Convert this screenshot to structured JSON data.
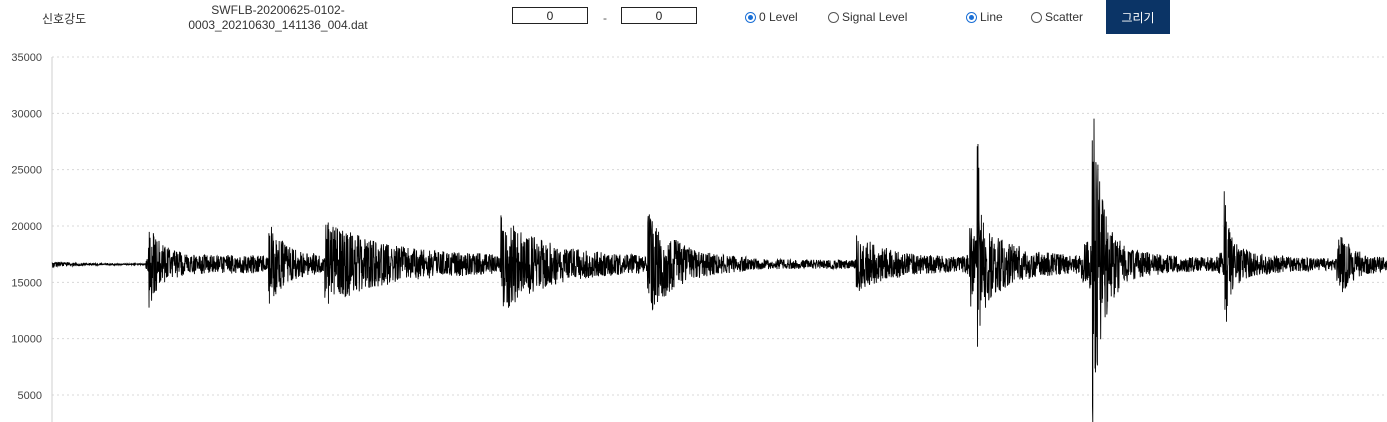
{
  "toolbar": {
    "title": "신호강도",
    "filename_line1": "SWFLB-20200625-0102-",
    "filename_line2": "0003_20210630_141136_004.dat",
    "range_start": "0",
    "range_sep": "-",
    "range_end": "0",
    "level_options": [
      {
        "label": "0 Level",
        "selected": true
      },
      {
        "label": "Signal Level",
        "selected": false
      }
    ],
    "style_options": [
      {
        "label": "Line",
        "selected": true
      },
      {
        "label": "Scatter",
        "selected": false
      }
    ],
    "draw_label": "그리기"
  },
  "colors": {
    "accent": "#0b3466",
    "radio": "#1a6fd6",
    "signal": "#000000",
    "grid": "#d8d8d8"
  },
  "chart_data": {
    "type": "line",
    "title": "",
    "xlabel": "",
    "ylabel": "",
    "y_ticks": [
      35000,
      30000,
      25000,
      20000,
      15000,
      10000,
      5000
    ],
    "ylim": [
      2500,
      35000
    ],
    "grid": "horizontal dotted",
    "baseline": 16600,
    "series": [
      {
        "description_points": [
          {
            "x": 0.0,
            "amp": 300
          },
          {
            "x": 0.07,
            "amp": 300
          },
          {
            "x": 0.072,
            "amp": 4200
          },
          {
            "x": 0.1,
            "amp": 900
          },
          {
            "x": 0.16,
            "amp": 800
          },
          {
            "x": 0.162,
            "amp": 4000
          },
          {
            "x": 0.2,
            "amp": 800
          },
          {
            "x": 0.204,
            "amp": 4200
          },
          {
            "x": 0.33,
            "amp": 800
          },
          {
            "x": 0.336,
            "amp": 4600
          },
          {
            "x": 0.44,
            "amp": 700
          },
          {
            "x": 0.446,
            "amp": 4700
          },
          {
            "x": 0.52,
            "amp": 500
          },
          {
            "x": 0.6,
            "amp": 400
          },
          {
            "x": 0.602,
            "amp": 2800
          },
          {
            "x": 0.68,
            "amp": 600
          },
          {
            "x": 0.687,
            "amp": 6000
          },
          {
            "x": 0.693,
            "amp": 13200
          },
          {
            "x": 0.7,
            "amp": 3500
          },
          {
            "x": 0.77,
            "amp": 700
          },
          {
            "x": 0.779,
            "amp": 16000
          },
          {
            "x": 0.8,
            "amp": 1800
          },
          {
            "x": 0.87,
            "amp": 600
          },
          {
            "x": 0.878,
            "amp": 7200
          },
          {
            "x": 0.89,
            "amp": 1500
          },
          {
            "x": 0.96,
            "amp": 500
          },
          {
            "x": 0.962,
            "amp": 3400
          },
          {
            "x": 1.0,
            "amp": 500
          }
        ]
      }
    ]
  }
}
